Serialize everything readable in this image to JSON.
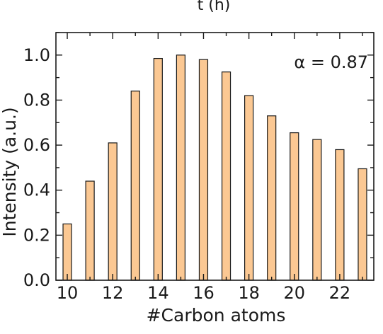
{
  "chart_data": {
    "type": "bar",
    "top_title": "t (h)",
    "xlabel": "#Carbon atoms",
    "ylabel": "Intensity (a.u.)",
    "annotation": "α = 0.87",
    "categories": [
      10,
      11,
      12,
      13,
      14,
      15,
      16,
      17,
      18,
      19,
      20,
      21,
      22,
      23
    ],
    "values": [
      0.25,
      0.44,
      0.61,
      0.84,
      0.985,
      1.0,
      0.98,
      0.925,
      0.82,
      0.73,
      0.655,
      0.625,
      0.58,
      0.495
    ],
    "xlim": [
      9.5,
      23.5
    ],
    "ylim": [
      0,
      1.1
    ],
    "xticks": [
      10,
      12,
      14,
      16,
      18,
      20,
      22
    ],
    "xtick_labels": [
      "10",
      "12",
      "14",
      "16",
      "18",
      "20",
      "22"
    ],
    "yticks": [
      0.0,
      0.2,
      0.4,
      0.6,
      0.8,
      1.0
    ],
    "ytick_labels": [
      "0.0",
      "0.2",
      "0.4",
      "0.6",
      "0.8",
      "1.0"
    ],
    "bar_color": "#fbc893",
    "edge_color": "#1a1a1a",
    "grid": false,
    "legend": false
  }
}
